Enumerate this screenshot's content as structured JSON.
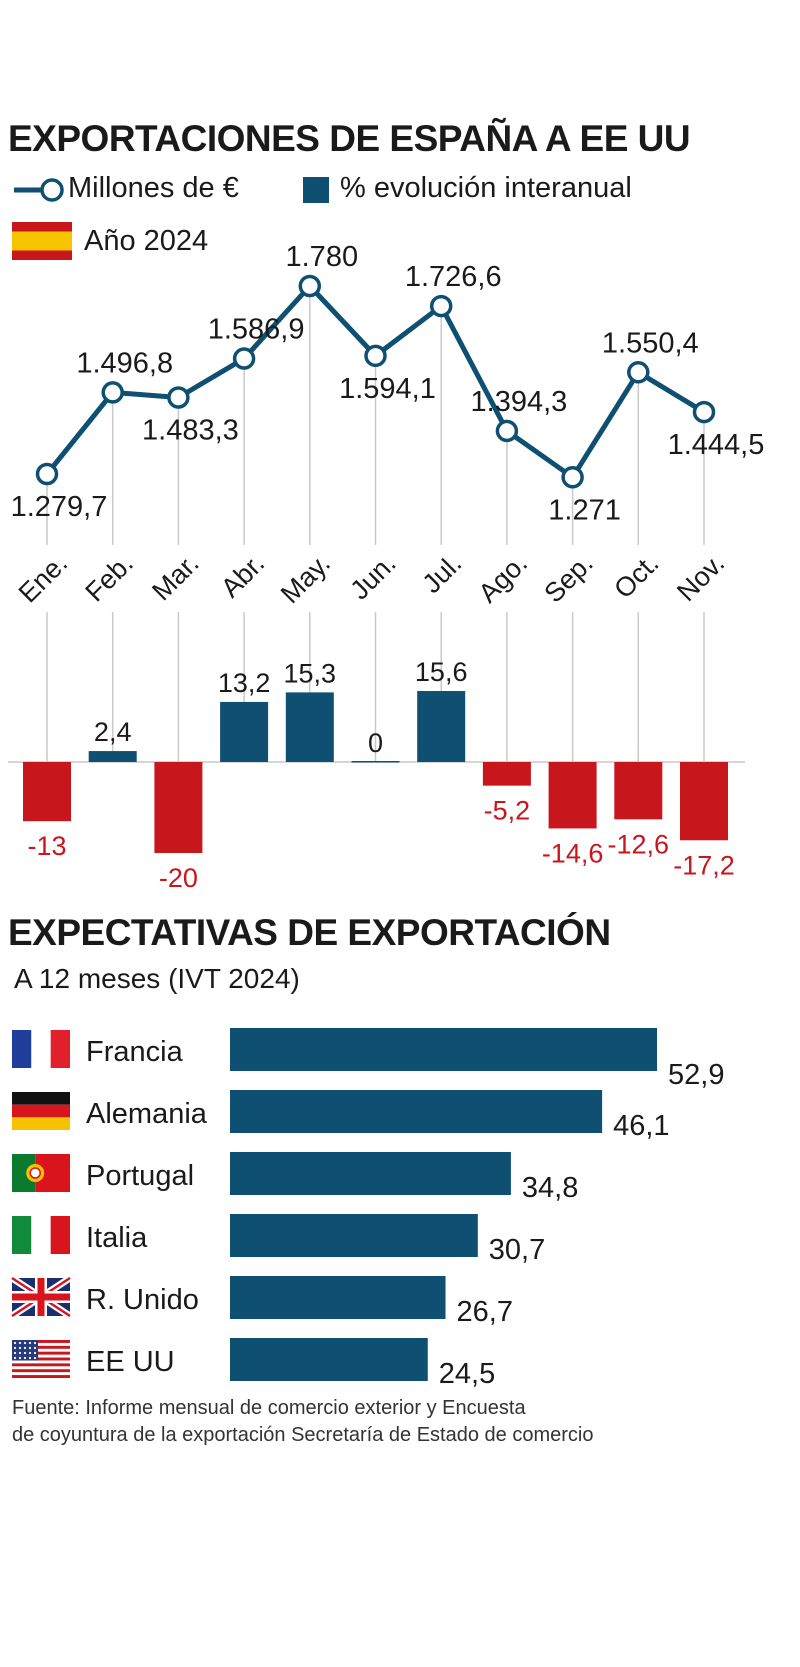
{
  "colors": {
    "navy": "#0e4f72",
    "red": "#c8161d",
    "spain_red": "#c8161d",
    "spain_yellow": "#f7c400",
    "grid": "#c9c9c9",
    "text": "#1a1a1a"
  },
  "chart_data": [
    {
      "type": "line",
      "title": "EXPORTACIONES DE ESPAÑA A EE UU",
      "legend": {
        "line_label": "Millones de €",
        "bar_label": "% evolución interanual",
        "year_label": "Año 2024"
      },
      "categories": [
        "Ene.",
        "Feb.",
        "Mar.",
        "Abr.",
        "May.",
        "Jun.",
        "Jul.",
        "Ago.",
        "Sep.",
        "Oct.",
        "Nov."
      ],
      "values": [
        1279.7,
        1496.8,
        1483.3,
        1586.9,
        1780,
        1594.1,
        1726.6,
        1394.3,
        1271,
        1550.4,
        1444.5
      ],
      "value_labels": [
        "1.279,7",
        "1.496,8",
        "1.483,3",
        "1.586,9",
        "1.780",
        "1.594,1",
        "1.726,6",
        "1.394,3",
        "1.271",
        "1.550,4",
        "1.444,5"
      ],
      "label_positions": [
        "below",
        "above",
        "below",
        "above",
        "above",
        "below",
        "above",
        "above",
        "below",
        "above",
        "below"
      ],
      "ylim": [
        1250,
        1800
      ]
    },
    {
      "type": "bar",
      "series_name": "% evolución interanual",
      "categories": [
        "Ene.",
        "Feb.",
        "Mar.",
        "Abr.",
        "May.",
        "Jun.",
        "Jul.",
        "Ago.",
        "Sep.",
        "Oct.",
        "Nov."
      ],
      "values": [
        -13,
        2.4,
        -20,
        13.2,
        15.3,
        0,
        15.6,
        -5.2,
        -14.6,
        -12.6,
        -17.2
      ],
      "value_labels": [
        "-13",
        "2,4",
        "-20",
        "13,2",
        "15,3",
        "0",
        "15,6",
        "-5,2",
        "-14,6",
        "-12,6",
        "-17,2"
      ]
    },
    {
      "type": "bar",
      "orientation": "horizontal",
      "title": "EXPECTATIVAS DE EXPORTACIÓN",
      "subtitle": "A 12 meses (IVT 2024)",
      "categories": [
        "Francia",
        "Alemania",
        "Portugal",
        "Italia",
        "R. Unido",
        "EE UU"
      ],
      "flags": [
        "france-flag",
        "germany-flag",
        "portugal-flag",
        "italy-flag",
        "uk-flag",
        "usa-flag"
      ],
      "values": [
        52.9,
        46.1,
        34.8,
        30.7,
        26.7,
        24.5
      ],
      "value_labels": [
        "52,9",
        "46,1",
        "34,8",
        "30,7",
        "26,7",
        "24,5"
      ],
      "xlim": [
        0,
        52.9
      ]
    }
  ],
  "source": {
    "line1": "Fuente: Informe mensual de comercio exterior y Encuesta",
    "line2": "de coyuntura de la exportación Secretaría de Estado de comercio"
  }
}
